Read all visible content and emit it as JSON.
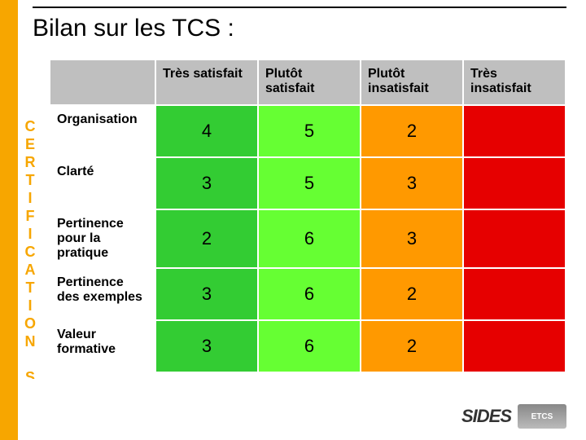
{
  "side_label": "CERTIFICATION SIDES",
  "title": "Bilan sur les TCS :",
  "columns": [
    {
      "label": "Très satisfait",
      "header_bg": "#bfbfbf",
      "cell_bg": "#33cc33"
    },
    {
      "label": "Plutôt satisfait",
      "header_bg": "#bfbfbf",
      "cell_bg": "#66ff33"
    },
    {
      "label": "Plutôt insatisfait",
      "header_bg": "#bfbfbf",
      "cell_bg": "#ff9900"
    },
    {
      "label": "Très insatisfait",
      "header_bg": "#bfbfbf",
      "cell_bg": "#e60000"
    }
  ],
  "rows": [
    {
      "label": "Organisation",
      "values": [
        "4",
        "5",
        "2",
        ""
      ]
    },
    {
      "label": "Clarté",
      "values": [
        "3",
        "5",
        "3",
        ""
      ]
    },
    {
      "label": "Pertinence pour la pratique",
      "values": [
        "2",
        "6",
        "3",
        ""
      ]
    },
    {
      "label": "Pertinence des exemples",
      "values": [
        "3",
        "6",
        "2",
        ""
      ]
    },
    {
      "label": "Valeur formative",
      "values": [
        "3",
        "6",
        "2",
        ""
      ]
    }
  ],
  "logos": {
    "sides": "SIDES",
    "box": "ETCS"
  },
  "colors": {
    "accent": "#f7a600",
    "rule": "#000000"
  }
}
